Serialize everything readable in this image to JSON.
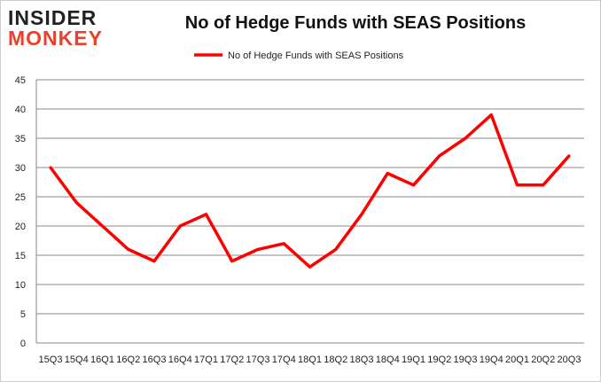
{
  "logo": {
    "line1": "INSIDER",
    "line2": "MONKEY"
  },
  "chart_data": {
    "type": "line",
    "title": "No of Hedge Funds with SEAS Positions",
    "categories": [
      "15Q3",
      "15Q4",
      "16Q1",
      "16Q2",
      "16Q3",
      "16Q4",
      "17Q1",
      "17Q2",
      "17Q3",
      "17Q4",
      "18Q1",
      "18Q2",
      "18Q3",
      "18Q4",
      "19Q1",
      "19Q2",
      "19Q3",
      "19Q4",
      "20Q1",
      "20Q2",
      "20Q3"
    ],
    "series": [
      {
        "name": "No of Hedge Funds with SEAS Positions",
        "color": "#ff0000",
        "values": [
          30,
          24,
          20,
          16,
          14,
          20,
          22,
          14,
          16,
          17,
          13,
          16,
          22,
          29,
          27,
          32,
          35,
          39,
          27,
          27,
          32
        ]
      }
    ],
    "ylim": [
      0,
      45
    ],
    "yticks": [
      0,
      5,
      10,
      15,
      20,
      25,
      30,
      35,
      40,
      45
    ],
    "grid": true,
    "legend": "top"
  }
}
